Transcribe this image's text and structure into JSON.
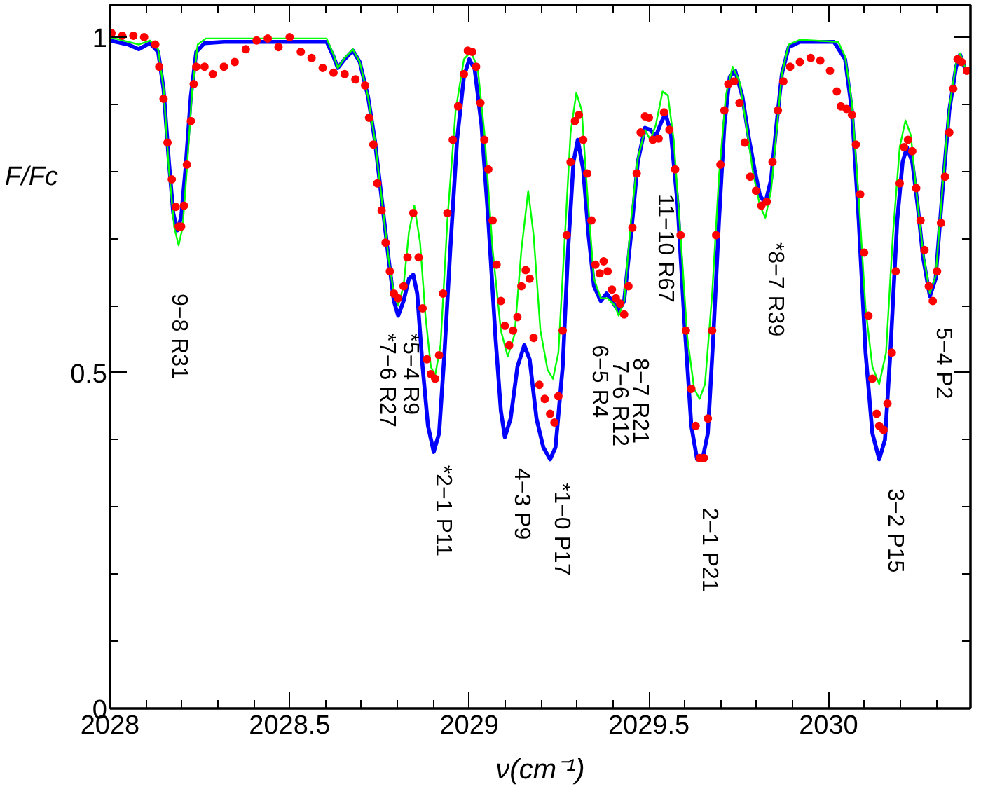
{
  "chart_data": {
    "type": "line",
    "xlabel": "ν(cm⁻¹)",
    "ylabel": "F/Fc",
    "xlim": [
      2028,
      2030.395
    ],
    "ylim": [
      0,
      1.048
    ],
    "xticks": [
      2028,
      {
        "value": 2028.1,
        "label": null
      },
      {
        "value": 2028.2,
        "label": null
      },
      {
        "value": 2028.3,
        "label": null
      },
      {
        "value": 2028.4,
        "label": null
      },
      2028.5,
      {
        "value": 2028.6,
        "label": null
      },
      {
        "value": 2028.7,
        "label": null
      },
      {
        "value": 2028.8,
        "label": null
      },
      {
        "value": 2028.9,
        "label": null
      },
      2029,
      {
        "value": 2029.1,
        "label": null
      },
      {
        "value": 2029.2,
        "label": null
      },
      {
        "value": 2029.3,
        "label": null
      },
      {
        "value": 2029.4,
        "label": null
      },
      2029.5,
      {
        "value": 2029.6,
        "label": null
      },
      {
        "value": 2029.7,
        "label": null
      },
      {
        "value": 2029.8,
        "label": null
      },
      {
        "value": 2029.9,
        "label": null
      },
      2030,
      {
        "value": 2030.1,
        "label": null
      },
      {
        "value": 2030.2,
        "label": null
      },
      {
        "value": 2030.3,
        "label": null
      }
    ],
    "yticks": [
      0,
      {
        "value": 0.1,
        "label": null
      },
      {
        "value": 0.2,
        "label": null
      },
      {
        "value": 0.3,
        "label": null
      },
      {
        "value": 0.4,
        "label": null
      },
      0.5,
      {
        "value": 0.6,
        "label": null
      },
      {
        "value": 0.7,
        "label": null
      },
      {
        "value": 0.8,
        "label": null
      },
      {
        "value": 0.9,
        "label": null
      },
      1
    ],
    "grid": false,
    "series": [
      {
        "type": "scatter",
        "marker": "circle",
        "color": "#ff0000",
        "x": [
          2028.004,
          2028.034,
          2028.065,
          2028.095,
          2028.126,
          2028.137,
          2028.149,
          2028.16,
          2028.172,
          2028.183,
          2028.191,
          2028.198,
          2028.206,
          2028.214,
          2028.225,
          2028.233,
          2028.24,
          2028.263,
          2028.286,
          2028.317,
          2028.347,
          2028.378,
          2028.408,
          2028.439,
          2028.469,
          2028.5,
          2028.531,
          2028.561,
          2028.592,
          2028.622,
          2028.653,
          2028.683,
          2028.71,
          2028.721,
          2028.733,
          2028.744,
          2028.756,
          2028.767,
          2028.779,
          2028.79,
          2028.802,
          2028.817,
          2028.828,
          2028.844,
          2028.859,
          2028.87,
          2028.882,
          2028.893,
          2028.905,
          2028.916,
          2028.927,
          2028.939,
          2028.954,
          2028.969,
          2028.985,
          2028.996,
          2029.008,
          2029.019,
          2029.031,
          2029.042,
          2029.053,
          2029.065,
          2029.076,
          2029.088,
          2029.099,
          2029.111,
          2029.122,
          2029.134,
          2029.145,
          2029.157,
          2029.168,
          2029.179,
          2029.195,
          2029.21,
          2029.225,
          2029.237,
          2029.248,
          2029.26,
          2029.271,
          2029.282,
          2029.294,
          2029.305,
          2029.317,
          2029.328,
          2029.34,
          2029.351,
          2029.363,
          2029.374,
          2029.385,
          2029.397,
          2029.408,
          2029.42,
          2029.431,
          2029.443,
          2029.454,
          2029.466,
          2029.477,
          2029.489,
          2029.5,
          2029.511,
          2029.527,
          2029.542,
          2029.557,
          2029.573,
          2029.588,
          2029.603,
          2029.618,
          2029.63,
          2029.641,
          2029.653,
          2029.664,
          2029.676,
          2029.687,
          2029.699,
          2029.71,
          2029.721,
          2029.737,
          2029.752,
          2029.767,
          2029.782,
          2029.798,
          2029.813,
          2029.828,
          2029.844,
          2029.859,
          2029.874,
          2029.893,
          2029.92,
          2029.95,
          2029.977,
          2030.004,
          2030.023,
          2030.034,
          2030.05,
          2030.065,
          2030.076,
          2030.088,
          2030.099,
          2030.111,
          2030.122,
          2030.134,
          2030.141,
          2030.153,
          2030.164,
          2030.176,
          2030.187,
          2030.198,
          2030.21,
          2030.221,
          2030.233,
          2030.244,
          2030.256,
          2030.267,
          2030.279,
          2030.29,
          2030.302,
          2030.313,
          2030.324,
          2030.336,
          2030.347,
          2030.359,
          2030.37,
          2030.385
        ],
        "values": [
          1.006,
          1.002,
          1.002,
          1.0,
          0.989,
          0.956,
          0.908,
          0.843,
          0.788,
          0.747,
          0.718,
          0.718,
          0.749,
          0.81,
          0.875,
          0.93,
          0.956,
          0.956,
          0.945,
          0.956,
          0.963,
          0.982,
          0.995,
          0.998,
          0.985,
          1.0,
          0.978,
          0.969,
          0.954,
          0.947,
          0.945,
          0.937,
          0.928,
          0.88,
          0.84,
          0.782,
          0.742,
          0.694,
          0.651,
          0.618,
          0.611,
          0.629,
          0.672,
          0.738,
          0.672,
          0.596,
          0.52,
          0.498,
          0.491,
          0.526,
          0.618,
          0.738,
          0.847,
          0.897,
          0.945,
          0.98,
          0.978,
          0.956,
          0.902,
          0.847,
          0.803,
          0.727,
          0.661,
          0.607,
          0.57,
          0.541,
          0.563,
          0.583,
          0.629,
          0.653,
          0.64,
          0.552,
          0.482,
          0.461,
          0.439,
          0.426,
          0.465,
          0.563,
          0.705,
          0.814,
          0.875,
          0.884,
          0.847,
          0.797,
          0.727,
          0.661,
          0.648,
          0.666,
          0.651,
          0.624,
          0.611,
          0.603,
          0.587,
          0.629,
          0.716,
          0.797,
          0.858,
          0.882,
          0.88,
          0.847,
          0.849,
          0.888,
          0.862,
          0.803,
          0.705,
          0.563,
          0.476,
          0.421,
          0.373,
          0.373,
          0.432,
          0.563,
          0.705,
          0.81,
          0.891,
          0.93,
          0.934,
          0.902,
          0.843,
          0.792,
          0.771,
          0.749,
          0.755,
          0.814,
          0.891,
          0.934,
          0.956,
          0.963,
          0.969,
          0.965,
          0.95,
          0.919,
          0.897,
          0.893,
          0.884,
          0.84,
          0.766,
          0.679,
          0.585,
          0.491,
          0.439,
          0.421,
          0.415,
          0.454,
          0.53,
          0.651,
          0.782,
          0.836,
          0.847,
          0.83,
          0.775,
          0.727,
          0.683,
          0.629,
          0.607,
          0.651,
          0.723,
          0.792,
          0.858,
          0.923,
          0.967,
          0.963,
          0.95
        ]
      },
      {
        "color": "#00ff00",
        "x": [
          2028.0,
          2028.05,
          2028.08,
          2028.111,
          2028.134,
          2028.149,
          2028.164,
          2028.179,
          2028.191,
          2028.202,
          2028.214,
          2028.229,
          2028.244,
          2028.267,
          2028.603,
          2028.622,
          2028.634,
          2028.653,
          2028.676,
          2028.695,
          2028.718,
          2028.737,
          2028.756,
          2028.775,
          2028.79,
          2028.802,
          2028.817,
          2028.832,
          2028.847,
          2028.863,
          2028.878,
          2028.893,
          2028.905,
          2028.92,
          2028.939,
          2028.962,
          2028.985,
          2029.004,
          2029.023,
          2029.042,
          2029.065,
          2029.088,
          2029.107,
          2029.126,
          2029.145,
          2029.164,
          2029.179,
          2029.198,
          2029.218,
          2029.233,
          2029.248,
          2029.264,
          2029.282,
          2029.298,
          2029.313,
          2029.328,
          2029.347,
          2029.366,
          2029.385,
          2029.405,
          2029.416,
          2029.431,
          2029.45,
          2029.469,
          2029.489,
          2029.504,
          2029.519,
          2029.538,
          2029.553,
          2029.569,
          2029.588,
          2029.607,
          2029.626,
          2029.641,
          2029.656,
          2029.676,
          2029.695,
          2029.714,
          2029.733,
          2029.752,
          2029.771,
          2029.79,
          2029.809,
          2029.824,
          2029.84,
          2029.855,
          2029.87,
          2029.889,
          2029.92,
          2030.027,
          2030.046,
          2030.065,
          2030.084,
          2030.103,
          2030.122,
          2030.141,
          2030.16,
          2030.179,
          2030.198,
          2030.214,
          2030.229,
          2030.244,
          2030.263,
          2030.282,
          2030.298,
          2030.317,
          2030.336,
          2030.355,
          2030.366,
          2030.378,
          2030.385
        ],
        "values": [
          1.0,
          0.993,
          0.989,
          0.995,
          0.982,
          0.923,
          0.803,
          0.716,
          0.69,
          0.716,
          0.803,
          0.923,
          0.989,
          0.998,
          0.998,
          0.974,
          0.954,
          0.969,
          0.982,
          0.963,
          0.912,
          0.847,
          0.76,
          0.672,
          0.618,
          0.6,
          0.629,
          0.71,
          0.749,
          0.694,
          0.585,
          0.509,
          0.496,
          0.541,
          0.727,
          0.891,
          0.967,
          0.978,
          0.956,
          0.858,
          0.683,
          0.563,
          0.524,
          0.557,
          0.683,
          0.771,
          0.705,
          0.563,
          0.504,
          0.491,
          0.53,
          0.683,
          0.858,
          0.917,
          0.891,
          0.771,
          0.64,
          0.611,
          0.611,
          0.6,
          0.585,
          0.607,
          0.727,
          0.819,
          0.862,
          0.847,
          0.869,
          0.919,
          0.913,
          0.847,
          0.705,
          0.552,
          0.476,
          0.461,
          0.483,
          0.618,
          0.793,
          0.913,
          0.956,
          0.934,
          0.869,
          0.797,
          0.749,
          0.731,
          0.771,
          0.858,
          0.945,
          0.989,
          0.996,
          0.993,
          0.971,
          0.902,
          0.76,
          0.596,
          0.509,
          0.483,
          0.53,
          0.705,
          0.836,
          0.876,
          0.854,
          0.771,
          0.679,
          0.618,
          0.644,
          0.775,
          0.895,
          0.961,
          0.976,
          0.958,
          0.945
        ]
      },
      {
        "color": "#0000ff",
        "x": [
          2028.0,
          2028.05,
          2028.08,
          2028.111,
          2028.134,
          2028.149,
          2028.164,
          2028.176,
          2028.187,
          2028.198,
          2028.21,
          2028.225,
          2028.24,
          2028.263,
          2028.317,
          2028.603,
          2028.622,
          2028.634,
          2028.653,
          2028.676,
          2028.695,
          2028.718,
          2028.737,
          2028.756,
          2028.775,
          2028.79,
          2028.802,
          2028.817,
          2028.832,
          2028.844,
          2028.855,
          2028.87,
          2028.885,
          2028.901,
          2028.916,
          2028.931,
          2028.947,
          2028.966,
          2028.985,
          2029.0,
          2029.015,
          2029.034,
          2029.053,
          2029.073,
          2029.088,
          2029.099,
          2029.115,
          2029.134,
          2029.153,
          2029.168,
          2029.187,
          2029.206,
          2029.225,
          2029.24,
          2029.26,
          2029.275,
          2029.29,
          2029.302,
          2029.317,
          2029.332,
          2029.347,
          2029.366,
          2029.382,
          2029.397,
          2029.416,
          2029.431,
          2029.45,
          2029.469,
          2029.489,
          2029.504,
          2029.519,
          2029.534,
          2029.546,
          2029.561,
          2029.58,
          2029.599,
          2029.618,
          2029.634,
          2029.649,
          2029.664,
          2029.679,
          2029.695,
          2029.71,
          2029.725,
          2029.74,
          2029.76,
          2029.779,
          2029.794,
          2029.809,
          2029.824,
          2029.84,
          2029.855,
          2029.87,
          2029.889,
          2029.92,
          2030.015,
          2030.046,
          2030.065,
          2030.084,
          2030.103,
          2030.122,
          2030.141,
          2030.157,
          2030.172,
          2030.191,
          2030.206,
          2030.218,
          2030.233,
          2030.248,
          2030.263,
          2030.282,
          2030.298,
          2030.317,
          2030.336,
          2030.355,
          2030.366,
          2030.378,
          2030.385
        ],
        "values": [
          0.995,
          0.989,
          0.982,
          0.991,
          0.978,
          0.923,
          0.814,
          0.738,
          0.712,
          0.731,
          0.803,
          0.912,
          0.978,
          0.991,
          0.993,
          0.993,
          0.971,
          0.954,
          0.967,
          0.98,
          0.963,
          0.912,
          0.847,
          0.76,
          0.672,
          0.607,
          0.585,
          0.607,
          0.64,
          0.646,
          0.618,
          0.509,
          0.421,
          0.382,
          0.41,
          0.53,
          0.683,
          0.847,
          0.941,
          0.967,
          0.952,
          0.869,
          0.727,
          0.552,
          0.443,
          0.404,
          0.432,
          0.509,
          0.541,
          0.52,
          0.432,
          0.389,
          0.371,
          0.389,
          0.509,
          0.683,
          0.814,
          0.847,
          0.803,
          0.705,
          0.629,
          0.607,
          0.618,
          0.607,
          0.592,
          0.607,
          0.705,
          0.814,
          0.865,
          0.862,
          0.852,
          0.873,
          0.886,
          0.858,
          0.749,
          0.574,
          0.421,
          0.371,
          0.371,
          0.41,
          0.552,
          0.727,
          0.869,
          0.941,
          0.95,
          0.912,
          0.847,
          0.803,
          0.764,
          0.753,
          0.788,
          0.869,
          0.945,
          0.985,
          0.993,
          0.993,
          0.967,
          0.891,
          0.727,
          0.53,
          0.41,
          0.371,
          0.4,
          0.53,
          0.727,
          0.814,
          0.836,
          0.814,
          0.749,
          0.672,
          0.614,
          0.64,
          0.771,
          0.891,
          0.956,
          0.974,
          0.956,
          0.945
        ]
      }
    ],
    "annotations": [
      "9−8 R31",
      "*7−6 R27",
      "*5−4 R9",
      "*2−1 P11",
      "4−3 P9",
      "*1−0 P17",
      "6−5 R4",
      "7−6 R12",
      "8−7 R21",
      "11−10 R67",
      "2−1 P21",
      "*8−7 R39",
      "3−2 P15",
      "5−4 P2"
    ]
  }
}
